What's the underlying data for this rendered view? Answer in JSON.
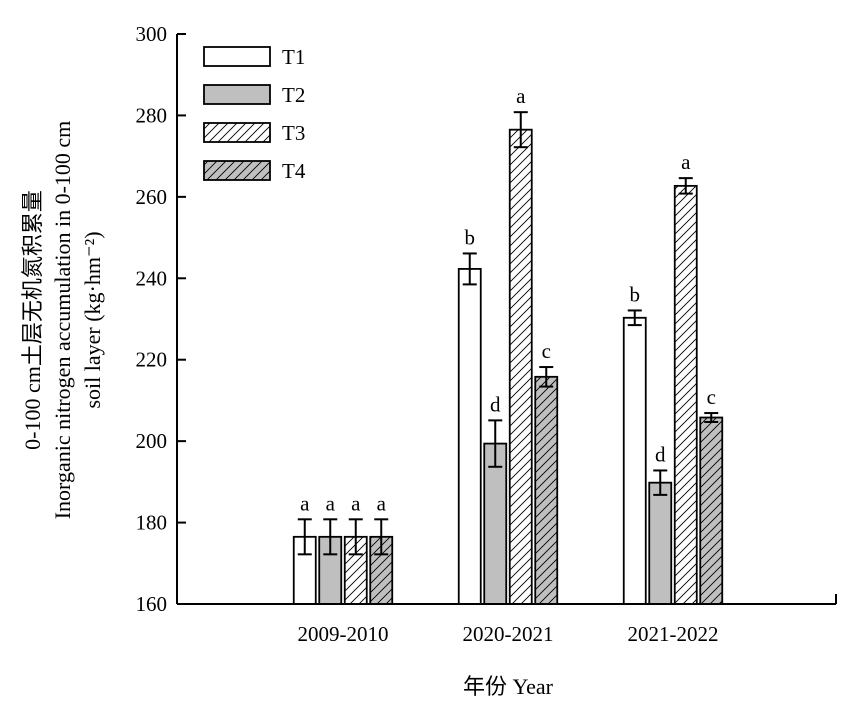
{
  "chart_data": {
    "type": "bar",
    "xlabel": "年份 Year",
    "ylabel_lines": [
      "0-100 cm土层无机氮积累量",
      "Inorganic nitrogen accumulation in 0-100 cm",
      "soil layer (kg·hm⁻²)"
    ],
    "ylim": [
      160,
      300
    ],
    "yticks": [
      160,
      180,
      200,
      220,
      240,
      260,
      280,
      300
    ],
    "categories": [
      "2009-2010",
      "2020-2021",
      "2021-2022"
    ],
    "legend_position": "top-left",
    "series": [
      {
        "name": "T1",
        "fill": "white",
        "values": [
          176.5,
          242.3,
          230.3
        ],
        "errors": [
          4.3,
          3.8,
          1.8
        ],
        "significance": [
          "a",
          "b",
          "b"
        ]
      },
      {
        "name": "T2",
        "fill": "gray",
        "values": [
          176.5,
          199.4,
          189.8
        ],
        "errors": [
          4.3,
          5.7,
          3.0
        ],
        "significance": [
          "a",
          "d",
          "d"
        ]
      },
      {
        "name": "T3",
        "fill": "white-hatched",
        "values": [
          176.5,
          276.5,
          262.7
        ],
        "errors": [
          4.3,
          4.3,
          1.9
        ],
        "significance": [
          "a",
          "a",
          "a"
        ]
      },
      {
        "name": "T4",
        "fill": "gray-hatched",
        "values": [
          176.5,
          215.8,
          205.8
        ],
        "errors": [
          4.3,
          2.4,
          1.1
        ],
        "significance": [
          "a",
          "c",
          "c"
        ]
      }
    ]
  },
  "colors": {
    "gray_fill": "#bfbfbf",
    "axis": "#000000",
    "bar_edge": "#000000"
  }
}
